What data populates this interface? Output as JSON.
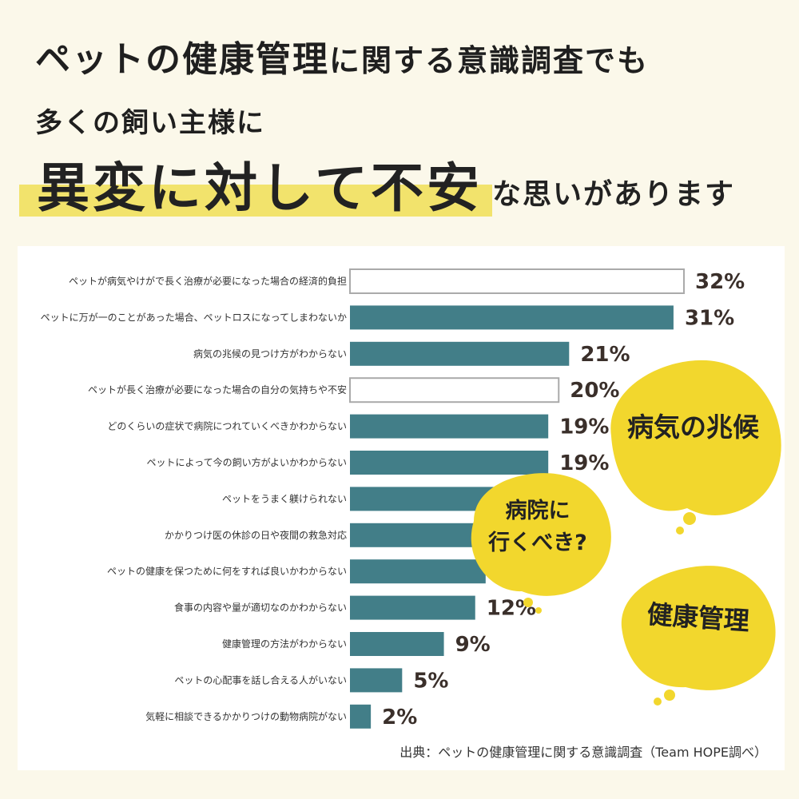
{
  "header": {
    "line1_part1": "ペットの健康管理",
    "line1_part2": "に関する意識調査でも",
    "line2": "多くの飼い主様に",
    "line3_emphasis": "異変に対して不安",
    "line3_rest": "な思いがあります"
  },
  "chart_data": {
    "type": "bar",
    "orientation": "horizontal",
    "xlim": [
      0,
      32
    ],
    "categories": [
      "ペットが病気やけがで長く治療が必要になった場合の経済的負担",
      "ペットに万が一のことがあった場合、ペットロスになってしまわないか",
      "病気の兆候の見つけ方がわからない",
      "ペットが長く治療が必要になった場合の自分の気持ちや不安",
      "どのくらいの症状で病院につれていくべきかわからない",
      "ペットによって今の飼い方がよいかわからない",
      "ペットをうまく躾けられない",
      "かかりつけ医の休診の日や夜間の救急対応",
      "ペットの健康を保つために何をすれば良いかわからない",
      "食事の内容や量が適切なのかわからない",
      "健康管理の方法がわからない",
      "ペットの心配事を話し合える人がいない",
      "気軽に相談できるかかりつけの動物病院がない"
    ],
    "values": [
      32,
      31,
      21,
      20,
      19,
      19,
      17,
      15,
      13,
      12,
      9,
      5,
      2
    ],
    "value_labels": [
      "32%",
      "31%",
      "21%",
      "20%",
      "19%",
      "19%",
      "",
      "",
      "",
      "12%",
      "9%",
      "5%",
      "2%"
    ],
    "outlined": [
      true,
      false,
      false,
      true,
      false,
      false,
      false,
      false,
      false,
      false,
      false,
      false,
      false
    ],
    "colors": {
      "bar": "#427e88",
      "outline": "#aaaaaa",
      "outline_fill": "#ffffff"
    },
    "source": "出典：ペットの健康管理に関する意識調査（Team HOPE調べ）"
  },
  "bubbles": [
    {
      "id": "bubble-1",
      "text": "病気の兆候"
    },
    {
      "id": "bubble-2",
      "lines": [
        "病院に",
        "行くべき?"
      ]
    },
    {
      "id": "bubble-3",
      "text": "健康管理"
    }
  ],
  "colors": {
    "background": "#fbf8ea",
    "highlight": "#f2e36c",
    "bubble": "#f2d72d"
  }
}
